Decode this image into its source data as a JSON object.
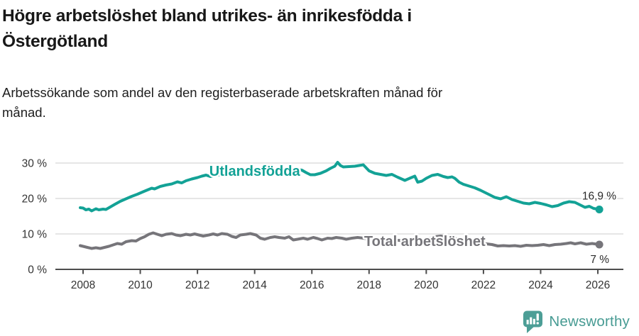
{
  "header": {
    "title": "Högre arbetslöshet bland utrikes- än inrikesfödda i Östergötland",
    "title_lines": [
      "Högre arbetslöshet bland utrikes- än inrikesfödda i",
      "Östergötland"
    ],
    "subtitle": "Arbetssökande som andel av den registerbaserade arbetskraften månad för månad.",
    "subtitle_lines": [
      "Arbetssökande som andel av den registerbaserade arbetskraften månad för",
      "månad."
    ]
  },
  "footer": {
    "brand": "Newsworthy",
    "icon": "newsworthy-badge-bar-chart-icon",
    "brand_color": "#479b93"
  },
  "chart_data": {
    "type": "line",
    "title": "Högre arbetslöshet bland utrikes- än inrikesfödda i Östergötland",
    "subtitle": "Arbetssökande som andel av den registerbaserade arbetskraften månad för månad.",
    "unit": "%",
    "xlim": [
      2007.9,
      2026.9
    ],
    "ylim": [
      0,
      32
    ],
    "grid": true,
    "legend_position": "inline-labels",
    "x_ticks": [
      {
        "value": 2008,
        "label": "2008"
      },
      {
        "value": 2010,
        "label": "2010"
      },
      {
        "value": 2012,
        "label": "2012"
      },
      {
        "value": 2014,
        "label": "2014"
      },
      {
        "value": 2016,
        "label": "2016"
      },
      {
        "value": 2018,
        "label": "2018"
      },
      {
        "value": 2020,
        "label": "2020"
      },
      {
        "value": 2022,
        "label": "2022"
      },
      {
        "value": 2024,
        "label": "2024"
      },
      {
        "value": 2026,
        "label": "2026"
      }
    ],
    "y_ticks": [
      {
        "value": 0,
        "label": "0 %"
      },
      {
        "value": 10,
        "label": "10 %"
      },
      {
        "value": 20,
        "label": "20 %"
      },
      {
        "value": 30,
        "label": "30 %"
      }
    ],
    "style": {
      "grid_color": "#d8d8d8",
      "axis_color": "#4d4d4d",
      "tick_color": "#333333",
      "annotation_color": "#2b2b2b",
      "background": "#ffffff"
    },
    "series": [
      {
        "id": "utlandsfodda",
        "name": "Utlandsfödda",
        "color": "#13a296",
        "end_label": "16,9 %",
        "end_value": 16.9,
        "label_pos": {
          "x": 2014.0,
          "v": 26.4
        },
        "points": [
          [
            2007.9,
            17.4
          ],
          [
            2008.0,
            17.3
          ],
          [
            2008.1,
            16.8
          ],
          [
            2008.2,
            17.0
          ],
          [
            2008.3,
            16.5
          ],
          [
            2008.45,
            17.1
          ],
          [
            2008.55,
            16.8
          ],
          [
            2008.7,
            17.0
          ],
          [
            2008.8,
            16.9
          ],
          [
            2008.95,
            17.6
          ],
          [
            2009.1,
            18.3
          ],
          [
            2009.3,
            19.2
          ],
          [
            2009.5,
            19.9
          ],
          [
            2009.7,
            20.6
          ],
          [
            2009.9,
            21.2
          ],
          [
            2010.1,
            21.9
          ],
          [
            2010.25,
            22.4
          ],
          [
            2010.4,
            22.9
          ],
          [
            2010.5,
            22.7
          ],
          [
            2010.7,
            23.4
          ],
          [
            2010.9,
            23.8
          ],
          [
            2011.1,
            24.1
          ],
          [
            2011.3,
            24.7
          ],
          [
            2011.45,
            24.4
          ],
          [
            2011.6,
            25.0
          ],
          [
            2011.8,
            25.5
          ],
          [
            2012.0,
            25.9
          ],
          [
            2012.15,
            26.3
          ],
          [
            2012.3,
            26.6
          ],
          [
            2012.45,
            26.2
          ],
          [
            2012.6,
            26.5
          ],
          [
            2012.8,
            26.7
          ],
          [
            2013.0,
            26.9
          ],
          [
            2013.3,
            27.1
          ],
          [
            2013.6,
            27.3
          ],
          [
            2013.9,
            27.5
          ],
          [
            2014.2,
            27.7
          ],
          [
            2014.5,
            27.9
          ],
          [
            2014.8,
            28.0
          ],
          [
            2015.1,
            28.1
          ],
          [
            2015.4,
            28.3
          ],
          [
            2015.65,
            28.0
          ],
          [
            2015.8,
            27.3
          ],
          [
            2015.95,
            26.7
          ],
          [
            2016.1,
            26.7
          ],
          [
            2016.3,
            27.1
          ],
          [
            2016.5,
            27.8
          ],
          [
            2016.65,
            28.5
          ],
          [
            2016.8,
            29.1
          ],
          [
            2016.9,
            30.2
          ],
          [
            2017.0,
            29.3
          ],
          [
            2017.1,
            28.9
          ],
          [
            2017.3,
            29.0
          ],
          [
            2017.5,
            29.1
          ],
          [
            2017.65,
            29.3
          ],
          [
            2017.8,
            29.5
          ],
          [
            2018.0,
            27.8
          ],
          [
            2018.2,
            27.1
          ],
          [
            2018.4,
            26.8
          ],
          [
            2018.6,
            26.5
          ],
          [
            2018.8,
            26.8
          ],
          [
            2019.0,
            26.0
          ],
          [
            2019.25,
            25.1
          ],
          [
            2019.45,
            25.8
          ],
          [
            2019.6,
            26.3
          ],
          [
            2019.7,
            24.6
          ],
          [
            2019.85,
            24.9
          ],
          [
            2020.0,
            25.7
          ],
          [
            2020.2,
            26.5
          ],
          [
            2020.4,
            26.8
          ],
          [
            2020.6,
            26.2
          ],
          [
            2020.75,
            25.9
          ],
          [
            2020.9,
            26.1
          ],
          [
            2021.0,
            25.7
          ],
          [
            2021.15,
            24.6
          ],
          [
            2021.3,
            24.0
          ],
          [
            2021.5,
            23.5
          ],
          [
            2021.7,
            23.0
          ],
          [
            2021.9,
            22.3
          ],
          [
            2022.0,
            21.9
          ],
          [
            2022.2,
            21.1
          ],
          [
            2022.4,
            20.3
          ],
          [
            2022.6,
            19.9
          ],
          [
            2022.8,
            20.5
          ],
          [
            2023.0,
            19.7
          ],
          [
            2023.2,
            19.2
          ],
          [
            2023.4,
            18.7
          ],
          [
            2023.6,
            18.5
          ],
          [
            2023.8,
            18.9
          ],
          [
            2024.0,
            18.6
          ],
          [
            2024.2,
            18.2
          ],
          [
            2024.4,
            17.7
          ],
          [
            2024.6,
            18.0
          ],
          [
            2024.8,
            18.7
          ],
          [
            2025.0,
            19.1
          ],
          [
            2025.2,
            18.9
          ],
          [
            2025.4,
            18.1
          ],
          [
            2025.55,
            17.5
          ],
          [
            2025.7,
            17.8
          ],
          [
            2025.85,
            17.2
          ],
          [
            2026.05,
            16.9
          ]
        ]
      },
      {
        "id": "total",
        "name": "Total arbetslöshet",
        "color": "#76757a",
        "end_label": "7 %",
        "end_value": 7.0,
        "label_pos": {
          "x": 2019.95,
          "v": 6.6
        },
        "points": [
          [
            2007.9,
            6.7
          ],
          [
            2008.0,
            6.5
          ],
          [
            2008.15,
            6.2
          ],
          [
            2008.3,
            5.9
          ],
          [
            2008.45,
            6.1
          ],
          [
            2008.6,
            5.9
          ],
          [
            2008.75,
            6.2
          ],
          [
            2008.9,
            6.5
          ],
          [
            2009.05,
            6.9
          ],
          [
            2009.2,
            7.3
          ],
          [
            2009.35,
            7.1
          ],
          [
            2009.5,
            7.8
          ],
          [
            2009.7,
            8.1
          ],
          [
            2009.85,
            8.0
          ],
          [
            2010.0,
            8.7
          ],
          [
            2010.15,
            9.2
          ],
          [
            2010.3,
            9.9
          ],
          [
            2010.45,
            10.3
          ],
          [
            2010.6,
            9.9
          ],
          [
            2010.75,
            9.5
          ],
          [
            2010.9,
            9.9
          ],
          [
            2011.1,
            10.1
          ],
          [
            2011.25,
            9.7
          ],
          [
            2011.4,
            9.5
          ],
          [
            2011.6,
            9.9
          ],
          [
            2011.75,
            9.7
          ],
          [
            2011.9,
            10.0
          ],
          [
            2012.05,
            9.7
          ],
          [
            2012.2,
            9.4
          ],
          [
            2012.4,
            9.7
          ],
          [
            2012.55,
            10.0
          ],
          [
            2012.7,
            9.7
          ],
          [
            2012.85,
            10.1
          ],
          [
            2013.05,
            9.9
          ],
          [
            2013.2,
            9.3
          ],
          [
            2013.35,
            9.0
          ],
          [
            2013.5,
            9.7
          ],
          [
            2013.7,
            9.9
          ],
          [
            2013.85,
            10.1
          ],
          [
            2014.05,
            9.7
          ],
          [
            2014.2,
            8.8
          ],
          [
            2014.35,
            8.5
          ],
          [
            2014.55,
            9.0
          ],
          [
            2014.7,
            9.2
          ],
          [
            2014.85,
            9.0
          ],
          [
            2015.05,
            8.8
          ],
          [
            2015.2,
            9.2
          ],
          [
            2015.35,
            8.3
          ],
          [
            2015.5,
            8.5
          ],
          [
            2015.7,
            8.8
          ],
          [
            2015.85,
            8.5
          ],
          [
            2016.05,
            9.0
          ],
          [
            2016.2,
            8.7
          ],
          [
            2016.35,
            8.3
          ],
          [
            2016.55,
            8.8
          ],
          [
            2016.7,
            8.7
          ],
          [
            2016.85,
            9.0
          ],
          [
            2017.05,
            8.8
          ],
          [
            2017.2,
            8.5
          ],
          [
            2017.4,
            8.8
          ],
          [
            2017.6,
            9.0
          ],
          [
            2017.8,
            8.8
          ],
          [
            2018.0,
            8.6
          ],
          [
            2018.3,
            8.4
          ],
          [
            2018.6,
            8.3
          ],
          [
            2019.0,
            8.2
          ],
          [
            2019.4,
            8.0
          ],
          [
            2019.7,
            8.1
          ],
          [
            2020.0,
            8.5
          ],
          [
            2020.3,
            9.2
          ],
          [
            2020.5,
            9.4
          ],
          [
            2020.8,
            9.1
          ],
          [
            2021.0,
            8.7
          ],
          [
            2021.3,
            8.2
          ],
          [
            2021.6,
            7.8
          ],
          [
            2021.9,
            7.4
          ],
          [
            2022.1,
            7.2
          ],
          [
            2022.3,
            7.0
          ],
          [
            2022.5,
            6.6
          ],
          [
            2022.7,
            6.7
          ],
          [
            2022.9,
            6.6
          ],
          [
            2023.1,
            6.7
          ],
          [
            2023.3,
            6.5
          ],
          [
            2023.5,
            6.8
          ],
          [
            2023.7,
            6.7
          ],
          [
            2023.9,
            6.8
          ],
          [
            2024.1,
            7.0
          ],
          [
            2024.3,
            6.7
          ],
          [
            2024.5,
            7.0
          ],
          [
            2024.7,
            7.1
          ],
          [
            2024.9,
            7.3
          ],
          [
            2025.05,
            7.5
          ],
          [
            2025.2,
            7.2
          ],
          [
            2025.4,
            7.5
          ],
          [
            2025.6,
            7.1
          ],
          [
            2025.8,
            7.3
          ],
          [
            2026.05,
            7.0
          ]
        ]
      }
    ]
  }
}
